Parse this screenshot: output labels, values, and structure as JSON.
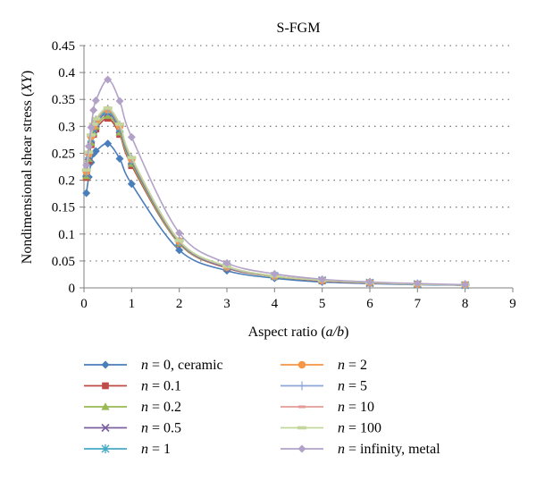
{
  "chart_data": {
    "type": "line",
    "title": "S-FGM",
    "xlabel_parts": [
      "Aspect ratio (",
      "a/b",
      ")"
    ],
    "ylabel_parts": [
      "Nondimensional shear stress (",
      "XY",
      ")"
    ],
    "xlim": [
      0,
      9
    ],
    "ylim": [
      0,
      0.45
    ],
    "x_ticks": [
      "0",
      "1",
      "2",
      "3",
      "4",
      "5",
      "6",
      "7",
      "8",
      "9"
    ],
    "y_ticks": [
      "0",
      "0.05",
      "0.1",
      "0.15",
      "0.2",
      "0.25",
      "0.3",
      "0.35",
      "0.4",
      "0.45"
    ],
    "grid": "horizontal-dotted",
    "legend_placement": "bottom",
    "x": [
      0.05,
      0.1,
      0.15,
      0.2,
      0.25,
      0.5,
      0.75,
      1,
      2,
      3,
      4,
      5,
      6,
      7,
      8
    ],
    "series": [
      {
        "label": "0, ceramic",
        "color": "#4a7ebb",
        "marker": "diamond",
        "values": [
          0.176,
          0.206,
          0.233,
          0.249,
          0.254,
          0.268,
          0.24,
          0.193,
          0.07,
          0.032,
          0.018,
          0.011,
          0.008,
          0.006,
          0.005
        ]
      },
      {
        "label": "0.1",
        "color": "#be4b48",
        "marker": "square",
        "values": [
          0.205,
          0.236,
          0.266,
          0.285,
          0.295,
          0.315,
          0.285,
          0.227,
          0.082,
          0.037,
          0.021,
          0.013,
          0.009,
          0.007,
          0.005
        ]
      },
      {
        "label": "0.2",
        "color": "#98b954",
        "marker": "triangle",
        "values": [
          0.208,
          0.24,
          0.27,
          0.289,
          0.3,
          0.32,
          0.289,
          0.231,
          0.083,
          0.038,
          0.021,
          0.014,
          0.009,
          0.007,
          0.005
        ]
      },
      {
        "label": "0.5",
        "color": "#7d60a0",
        "marker": "x",
        "values": [
          0.212,
          0.244,
          0.275,
          0.294,
          0.305,
          0.325,
          0.294,
          0.235,
          0.085,
          0.038,
          0.022,
          0.014,
          0.009,
          0.007,
          0.005
        ]
      },
      {
        "label": "1",
        "color": "#46aac5",
        "marker": "star",
        "values": [
          0.214,
          0.247,
          0.278,
          0.297,
          0.308,
          0.328,
          0.297,
          0.237,
          0.086,
          0.039,
          0.022,
          0.014,
          0.01,
          0.007,
          0.005
        ]
      },
      {
        "label": "2",
        "color": "#f79646",
        "marker": "circle",
        "values": [
          0.216,
          0.249,
          0.281,
          0.3,
          0.311,
          0.331,
          0.3,
          0.239,
          0.087,
          0.039,
          0.022,
          0.014,
          0.01,
          0.007,
          0.006
        ]
      },
      {
        "label": "5",
        "color": "#8ea7d8",
        "marker": "plus",
        "values": [
          0.217,
          0.25,
          0.282,
          0.302,
          0.312,
          0.332,
          0.302,
          0.24,
          0.087,
          0.039,
          0.022,
          0.014,
          0.01,
          0.007,
          0.006
        ]
      },
      {
        "label": "10",
        "color": "#e39b98",
        "marker": "dash",
        "values": [
          0.218,
          0.251,
          0.283,
          0.303,
          0.313,
          0.333,
          0.303,
          0.241,
          0.087,
          0.04,
          0.022,
          0.014,
          0.01,
          0.007,
          0.006
        ]
      },
      {
        "label": "100",
        "color": "#c3d69b",
        "marker": "bar",
        "values": [
          0.219,
          0.252,
          0.284,
          0.304,
          0.314,
          0.334,
          0.304,
          0.242,
          0.088,
          0.04,
          0.022,
          0.014,
          0.01,
          0.007,
          0.006
        ]
      },
      {
        "label": "infinity, metal",
        "color": "#b3a2c7",
        "marker": "diamond",
        "values": [
          0.228,
          0.263,
          0.298,
          0.33,
          0.348,
          0.387,
          0.347,
          0.28,
          0.102,
          0.046,
          0.026,
          0.016,
          0.011,
          0.008,
          0.006
        ]
      }
    ]
  }
}
